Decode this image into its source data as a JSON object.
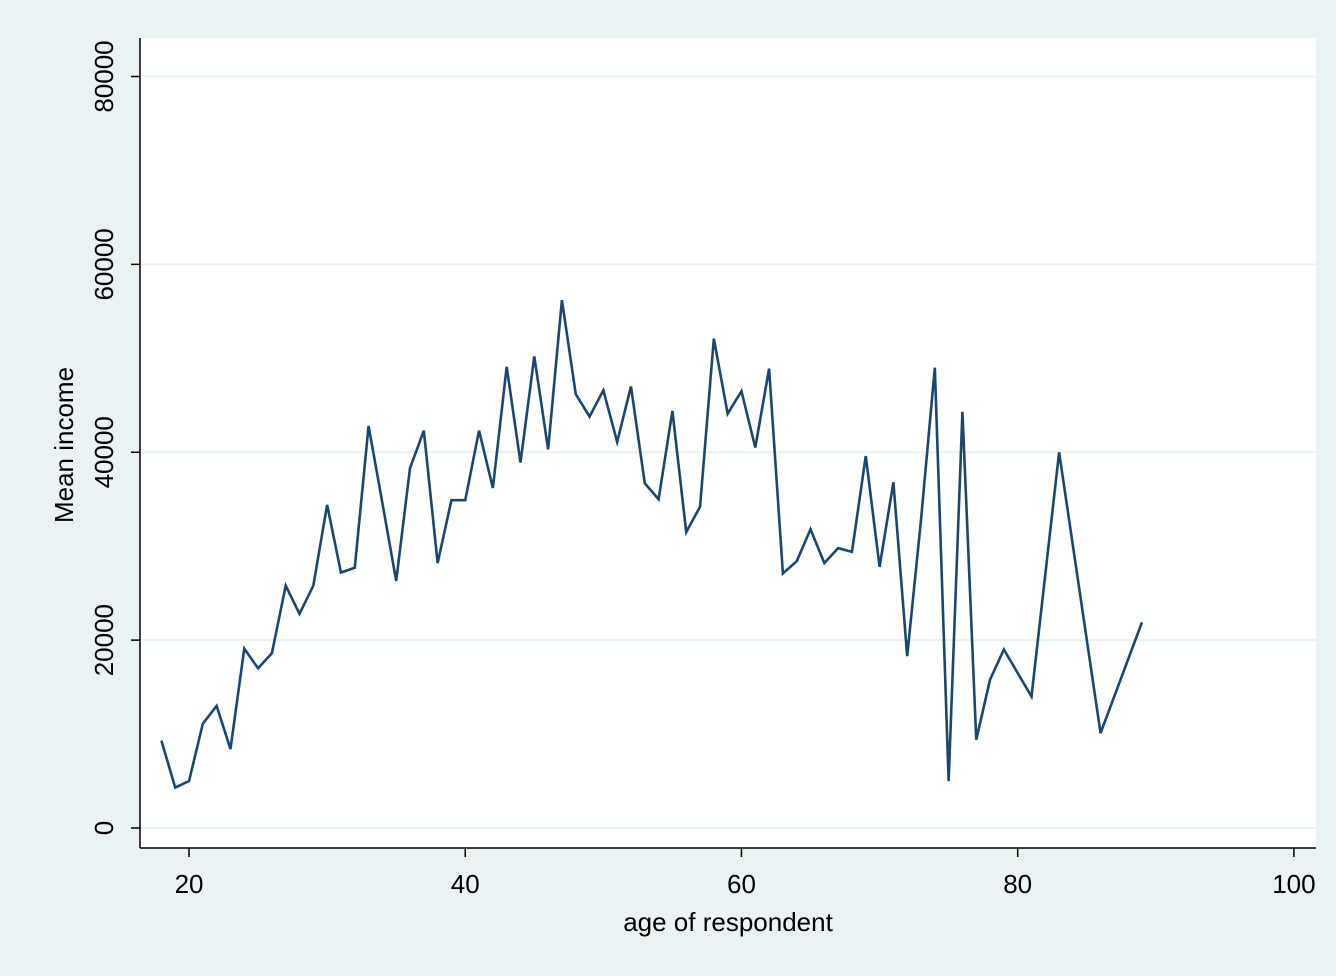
{
  "chart_data": {
    "type": "line",
    "x_label": "age of respondent",
    "y_label": "Mean income",
    "x": [
      18,
      19,
      20,
      21,
      22,
      23,
      24,
      25,
      26,
      27,
      28,
      29,
      30,
      31,
      32,
      33,
      34,
      35,
      36,
      37,
      38,
      39,
      40,
      41,
      42,
      43,
      44,
      45,
      46,
      47,
      48,
      49,
      50,
      51,
      52,
      53,
      54,
      55,
      56,
      57,
      58,
      59,
      60,
      61,
      62,
      63,
      64,
      65,
      66,
      67,
      68,
      69,
      70,
      71,
      72,
      73,
      74,
      75,
      76,
      77,
      78,
      79,
      81,
      83,
      86,
      89
    ],
    "series": [
      {
        "name": "Mean income",
        "color": "#1a476f",
        "values": [
          9300,
          4300,
          5000,
          11100,
          13000,
          8400,
          19100,
          17000,
          18600,
          25800,
          22800,
          25800,
          34400,
          27200,
          27700,
          42800,
          34600,
          26300,
          38300,
          42300,
          28200,
          34900,
          34900,
          42300,
          36200,
          49100,
          38900,
          50200,
          40300,
          56200,
          46200,
          43800,
          46600,
          41100,
          47000,
          36700,
          35000,
          44400,
          31500,
          34200,
          52100,
          44100,
          46500,
          40500,
          48900,
          27100,
          28400,
          31800,
          28200,
          29800,
          29400,
          39600,
          27800,
          36800,
          18300,
          32800,
          49000,
          5000,
          44300,
          9400,
          15800,
          19000,
          14000,
          40000,
          10100,
          21900
        ]
      }
    ],
    "xlim": [
      16.45,
      101.6
    ],
    "ylim": [
      -2130,
      84100
    ],
    "xticks": [
      20,
      40,
      60,
      80,
      100
    ],
    "yticks": [
      0,
      20000,
      40000,
      60000,
      80000
    ],
    "grid": true
  }
}
